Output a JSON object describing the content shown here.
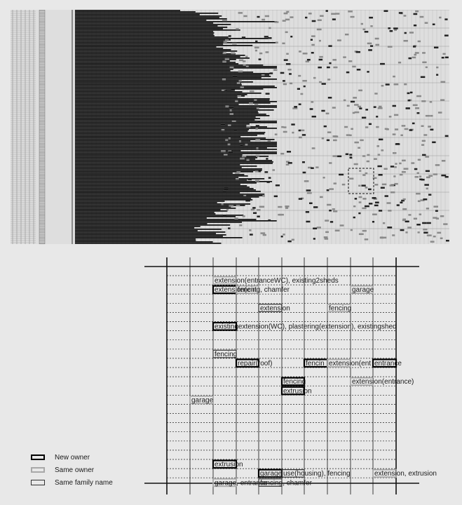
{
  "legend": {
    "new_owner": "New owner",
    "same_owner": "Same owner",
    "same_family": "Same family name"
  },
  "colors": {
    "background": "#e8e8e8",
    "ink": "#111111",
    "new_owner_border": "#000000",
    "same_owner_border": "#a8a8a8",
    "same_family_border": "#333333"
  },
  "detail_rows": [
    {
      "row": 0,
      "items": [
        {
          "col": 2,
          "text": "extension(entranceWC), existing2sheds",
          "type": "same"
        }
      ]
    },
    {
      "row": 1,
      "items": [
        {
          "col": 2,
          "text": "extension(ent",
          "type": "new"
        },
        {
          "col": 3,
          "text": "fencing, chamfer",
          "type": "same"
        },
        {
          "col": 8,
          "text": "garage",
          "type": "same"
        }
      ]
    },
    {
      "row": 3,
      "items": [
        {
          "col": 4,
          "text": "extension",
          "type": "family"
        },
        {
          "col": 7,
          "text": "fencing",
          "type": "same"
        }
      ]
    },
    {
      "row": 5,
      "items": [
        {
          "col": 2,
          "text": "existingextension(WC), plastering(extension), existingshed",
          "type": "new"
        }
      ]
    },
    {
      "row": 8,
      "items": [
        {
          "col": 2,
          "text": "fencing",
          "type": "family"
        }
      ]
    },
    {
      "row": 9,
      "items": [
        {
          "col": 3,
          "text": "repair(roof)",
          "type": "new"
        },
        {
          "col": 6,
          "text": "fencin",
          "type": "new"
        },
        {
          "col": 7,
          "text": "extension(ent",
          "type": "same"
        },
        {
          "col": 9,
          "text": "entrance",
          "type": "new"
        }
      ]
    },
    {
      "row": 11,
      "items": [
        {
          "col": 5,
          "text": "fencing",
          "type": "new"
        },
        {
          "col": 8,
          "text": "extension(entrance)",
          "type": "same"
        }
      ]
    },
    {
      "row": 12,
      "items": [
        {
          "col": 5,
          "text": "extrusion",
          "type": "new"
        }
      ]
    },
    {
      "row": 13,
      "items": [
        {
          "col": 1,
          "text": "garage",
          "type": "same"
        }
      ]
    },
    {
      "row": 20,
      "items": [
        {
          "col": 2,
          "text": "extrusion",
          "type": "new"
        }
      ]
    },
    {
      "row": 21,
      "items": [
        {
          "col": 4,
          "text": "garage",
          "type": "new"
        },
        {
          "col": 5,
          "text": "use(housing), fencing",
          "type": "family"
        },
        {
          "col": 9,
          "text": "extension, extrusion",
          "type": "same"
        }
      ]
    },
    {
      "row": 22,
      "items": [
        {
          "col": 2,
          "text": "garage, entrance",
          "type": "same"
        },
        {
          "col": 4,
          "text": "fencing, chamfer",
          "type": "family"
        }
      ]
    }
  ]
}
